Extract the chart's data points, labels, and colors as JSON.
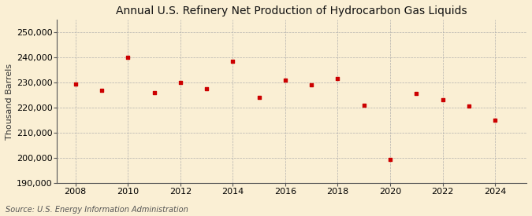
{
  "title": "Annual U.S. Refinery Net Production of Hydrocarbon Gas Liquids",
  "ylabel": "Thousand Barrels",
  "source": "Source: U.S. Energy Information Administration",
  "years": [
    2008,
    2009,
    2010,
    2011,
    2012,
    2013,
    2014,
    2015,
    2016,
    2017,
    2018,
    2019,
    2020,
    2021,
    2022,
    2023,
    2024
  ],
  "values": [
    229500,
    227000,
    240000,
    226000,
    230000,
    227500,
    238500,
    224000,
    231000,
    229000,
    231500,
    221000,
    199500,
    225500,
    223000,
    220500,
    215000
  ],
  "ylim": [
    190000,
    255000
  ],
  "yticks": [
    190000,
    200000,
    210000,
    220000,
    230000,
    240000,
    250000
  ],
  "xlim": [
    2007.3,
    2025.2
  ],
  "xticks": [
    2008,
    2010,
    2012,
    2014,
    2016,
    2018,
    2020,
    2022,
    2024
  ],
  "bg_color": "#faefd4",
  "marker_color": "#cc0000",
  "grid_color": "#aaaaaa",
  "title_fontsize": 10,
  "label_fontsize": 8,
  "source_fontsize": 7
}
